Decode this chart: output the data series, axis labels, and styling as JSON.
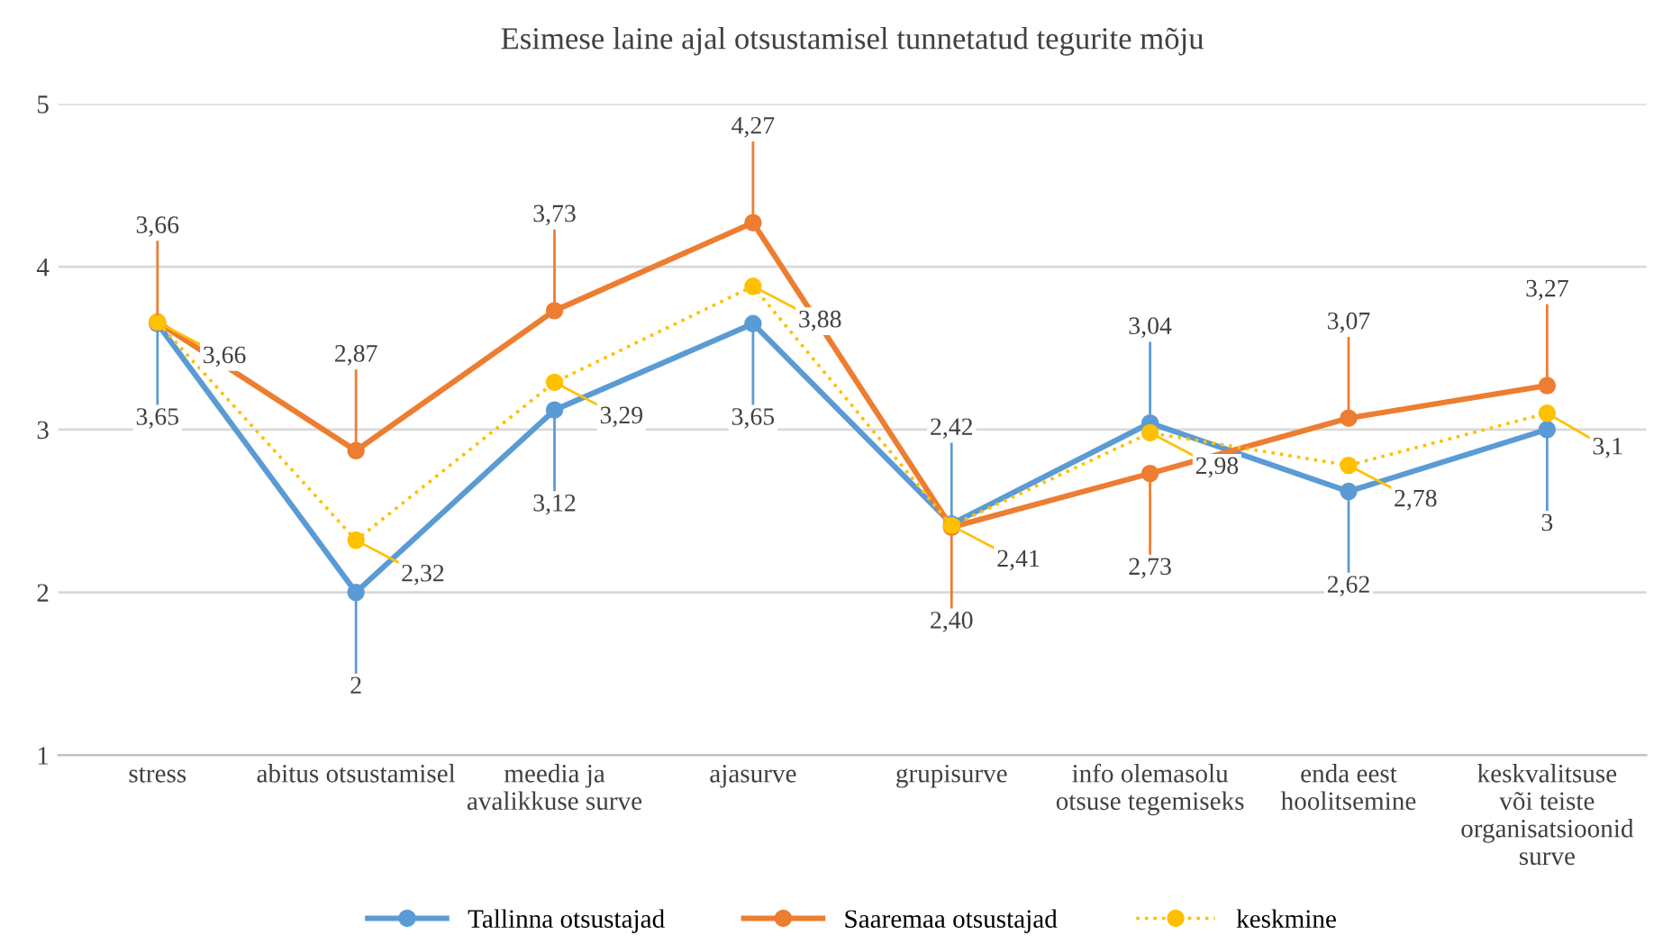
{
  "chart_data": {
    "type": "line",
    "title": "Esimese laine ajal otsustamisel tunnetatud tegurite mõju",
    "categories": [
      "stress",
      "abitus otsustamisel",
      "meedia ja\navalikkuse surve",
      "ajasurve",
      "grupisurve",
      "info olemasolu\notsuse tegemiseks",
      "enda eest\nhoolitsemine",
      "keskvalitsuse\nvõi teiste\norganisatsioonid\nsurve"
    ],
    "series": [
      {
        "name": "Tallinna otsustajad",
        "color": "#5b9bd5",
        "line_style": "solid",
        "values": [
          3.65,
          2,
          3.12,
          3.65,
          2.42,
          3.04,
          2.62,
          3
        ],
        "value_labels": [
          "3,65",
          "2",
          "3,12",
          "3,65",
          "2,42",
          "3,04",
          "2,62",
          "3"
        ]
      },
      {
        "name": "Saaremaa otsustajad",
        "color": "#ed7d31",
        "line_style": "solid",
        "values": [
          3.66,
          2.87,
          3.73,
          4.27,
          2.4,
          2.73,
          3.07,
          3.27
        ],
        "value_labels": [
          "3,66",
          "2,87",
          "3,73",
          "4,27",
          "2,40",
          "2,73",
          "3,07",
          "3,27"
        ]
      },
      {
        "name": "keskmine",
        "color": "#ffc000",
        "line_style": "dotted",
        "values": [
          3.66,
          2.32,
          3.29,
          3.88,
          2.41,
          2.98,
          2.78,
          3.1
        ],
        "value_labels": [
          "3,66",
          "2,32",
          "3,29",
          "3,88",
          "2,41",
          "2,98",
          "2,78",
          "3,1"
        ]
      }
    ],
    "ylim": [
      1,
      5
    ],
    "yticks": [
      1,
      2,
      3,
      4,
      5
    ],
    "grid": "y",
    "legend": "bottom",
    "marker": "circle"
  }
}
